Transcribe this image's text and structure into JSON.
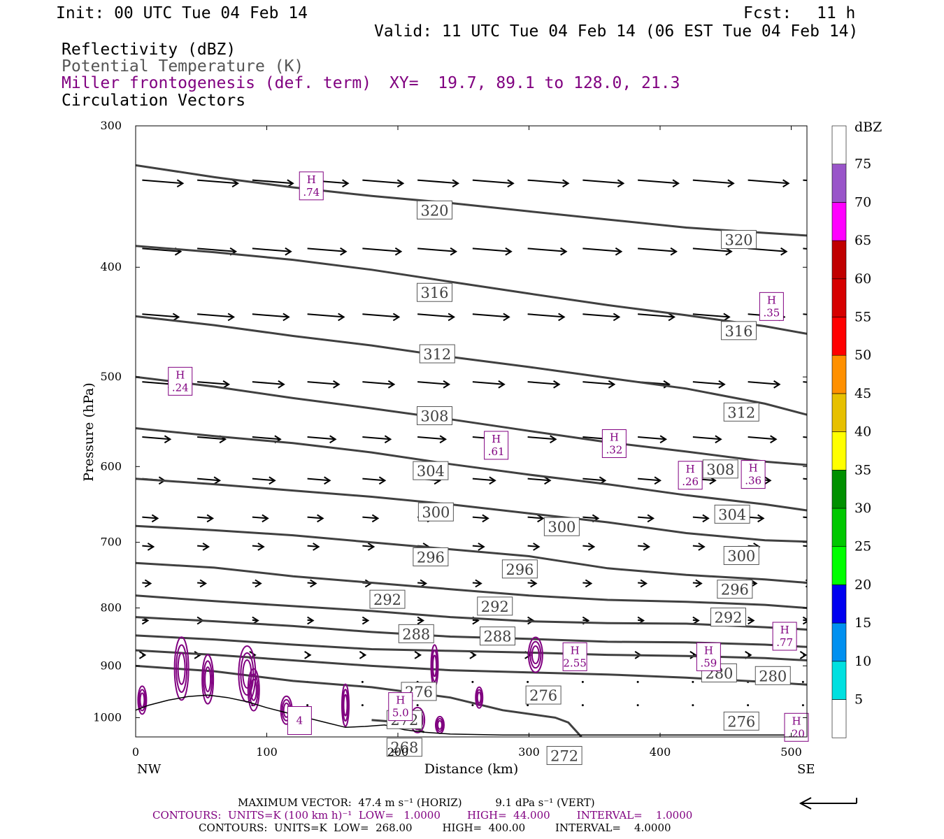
{
  "header": {
    "init": "Init: 00 UTC Tue 04 Feb 14",
    "fcst_label": "Fcst:",
    "fcst_value": "11 h",
    "valid": "Valid: 11 UTC Tue 04 Feb 14 (06 EST Tue 04 Feb 14)",
    "field1": "Reflectivity (dBZ)",
    "field2": "Potential Temperature (K)",
    "field3": "Miller frontogenesis (def. term)",
    "xy": "XY=  19.7, 89.1 to 128.0, 21.3",
    "field4": "Circulation Vectors"
  },
  "colors": {
    "theta": "#404040",
    "frontogenesis": "#800080",
    "vectors": "#000000",
    "terrain": "#000000"
  },
  "chart_data": {
    "type": "contour-cross-section",
    "xlabel": "Distance (km)",
    "ylabel": "Pressure (hPa)",
    "xlim": [
      0,
      512
    ],
    "ylim": [
      300,
      1040
    ],
    "y_scale": "log",
    "xticks": [
      0,
      100,
      200,
      300,
      400,
      500
    ],
    "yticks": [
      300,
      400,
      500,
      600,
      700,
      800,
      900,
      1000
    ],
    "x_end_left": "NW",
    "x_end_right": "SE",
    "colorbar": {
      "title": "dBZ",
      "labels": [
        "5",
        "10",
        "15",
        "20",
        "25",
        "30",
        "35",
        "40",
        "45",
        "50",
        "55",
        "60",
        "65",
        "70",
        "75"
      ],
      "colors": [
        "#ffffff",
        "#00e0e0",
        "#0090f0",
        "#0000f0",
        "#00ff00",
        "#00c800",
        "#009000",
        "#ffff00",
        "#e7c000",
        "#ff9000",
        "#ff0000",
        "#d60000",
        "#c00000",
        "#ff00ff",
        "#9955c9",
        "#ffffff"
      ]
    },
    "theta_contours": [
      {
        "level": 320,
        "points": [
          [
            0,
            325
          ],
          [
            60,
            333
          ],
          [
            120,
            340
          ],
          [
            180,
            346
          ],
          [
            240,
            351
          ],
          [
            300,
            357
          ],
          [
            360,
            363
          ],
          [
            420,
            369
          ],
          [
            480,
            373
          ],
          [
            512,
            375
          ]
        ],
        "labels": [
          [
            228,
            356
          ],
          [
            460,
            378
          ]
        ]
      },
      {
        "level": 316,
        "points": [
          [
            0,
            383
          ],
          [
            60,
            388
          ],
          [
            120,
            394
          ],
          [
            180,
            402
          ],
          [
            240,
            412
          ],
          [
            300,
            422
          ],
          [
            360,
            432
          ],
          [
            420,
            441
          ],
          [
            480,
            451
          ],
          [
            512,
            458
          ]
        ],
        "labels": [
          [
            228,
            421
          ],
          [
            460,
            455
          ]
        ]
      },
      {
        "level": 312,
        "points": [
          [
            0,
            442
          ],
          [
            60,
            450
          ],
          [
            120,
            460
          ],
          [
            180,
            469
          ],
          [
            240,
            480
          ],
          [
            300,
            490
          ],
          [
            360,
            501
          ],
          [
            420,
            512
          ],
          [
            480,
            528
          ],
          [
            512,
            540
          ]
        ],
        "labels": [
          [
            230,
            477
          ],
          [
            462,
            537
          ]
        ]
      },
      {
        "level": 308,
        "points": [
          [
            0,
            500
          ],
          [
            60,
            510
          ],
          [
            120,
            522
          ],
          [
            180,
            533
          ],
          [
            240,
            545
          ],
          [
            300,
            558
          ],
          [
            360,
            571
          ],
          [
            420,
            582
          ],
          [
            480,
            594
          ],
          [
            512,
            598
          ]
        ],
        "labels": [
          [
            228,
            541
          ],
          [
            446,
            603
          ]
        ]
      },
      {
        "level": 304,
        "points": [
          [
            0,
            555
          ],
          [
            60,
            564
          ],
          [
            120,
            572
          ],
          [
            180,
            583
          ],
          [
            240,
            597
          ],
          [
            300,
            610
          ],
          [
            360,
            622
          ],
          [
            420,
            636
          ],
          [
            480,
            648
          ],
          [
            512,
            656
          ]
        ],
        "labels": [
          [
            225,
            605
          ],
          [
            455,
            661
          ]
        ]
      },
      {
        "level": 300,
        "points": [
          [
            0,
            615
          ],
          [
            60,
            622
          ],
          [
            120,
            630
          ],
          [
            180,
            638
          ],
          [
            240,
            648
          ],
          [
            300,
            660
          ],
          [
            360,
            672
          ],
          [
            420,
            687
          ],
          [
            480,
            697
          ],
          [
            512,
            699
          ]
        ],
        "labels": [
          [
            229,
            658
          ],
          [
            325,
            678
          ],
          [
            462,
            719
          ]
        ]
      },
      {
        "level": 296,
        "points": [
          [
            0,
            677
          ],
          [
            60,
            683
          ],
          [
            120,
            690
          ],
          [
            180,
            700
          ],
          [
            240,
            710
          ],
          [
            300,
            720
          ],
          [
            360,
            738
          ],
          [
            420,
            748
          ],
          [
            480,
            755
          ],
          [
            512,
            760
          ]
        ],
        "labels": [
          [
            225,
            721
          ],
          [
            293,
            739
          ],
          [
            457,
            770
          ]
        ]
      },
      {
        "level": 292,
        "points": [
          [
            0,
            730
          ],
          [
            60,
            737
          ],
          [
            120,
            750
          ],
          [
            180,
            760
          ],
          [
            240,
            770
          ],
          [
            300,
            780
          ],
          [
            360,
            787
          ],
          [
            420,
            790
          ],
          [
            480,
            795
          ],
          [
            512,
            800
          ]
        ],
        "labels": [
          [
            192,
            786
          ],
          [
            274,
            797
          ],
          [
            452,
            815
          ]
        ]
      },
      {
        "level": 288,
        "points": [
          [
            0,
            780
          ],
          [
            60,
            789
          ],
          [
            120,
            797
          ],
          [
            180,
            805
          ],
          [
            240,
            815
          ],
          [
            300,
            822
          ],
          [
            360,
            825
          ],
          [
            420,
            826
          ],
          [
            480,
            832
          ],
          [
            512,
            836
          ]
        ],
        "labels": [
          [
            214,
            843
          ],
          [
            276,
            847
          ]
        ]
      },
      {
        "level": 284,
        "points": [
          [
            0,
            815
          ],
          [
            60,
            822
          ],
          [
            120,
            830
          ],
          [
            180,
            840
          ],
          [
            240,
            848
          ],
          [
            300,
            852
          ],
          [
            360,
            857
          ],
          [
            420,
            858
          ],
          [
            480,
            862
          ],
          [
            512,
            866
          ]
        ],
        "labels": []
      },
      {
        "level": 280,
        "points": [
          [
            0,
            846
          ],
          [
            60,
            853
          ],
          [
            120,
            862
          ],
          [
            180,
            870
          ],
          [
            240,
            873
          ],
          [
            300,
            876
          ],
          [
            360,
            880
          ],
          [
            420,
            882
          ],
          [
            480,
            886
          ],
          [
            512,
            890
          ]
        ],
        "labels": [
          [
            445,
            913
          ],
          [
            486,
            918
          ]
        ]
      },
      {
        "level": 276,
        "points": [
          [
            0,
            872
          ],
          [
            60,
            880
          ],
          [
            120,
            890
          ],
          [
            180,
            900
          ],
          [
            240,
            908
          ],
          [
            300,
            912
          ],
          [
            360,
            916
          ],
          [
            420,
            922
          ],
          [
            480,
            930
          ],
          [
            512,
            935
          ]
        ],
        "labels": [
          [
            216,
            948
          ],
          [
            311,
            955
          ],
          [
            462,
            1007
          ]
        ]
      },
      {
        "level": 272,
        "points": [
          [
            0,
            900
          ],
          [
            60,
            910
          ],
          [
            120,
            928
          ],
          [
            180,
            940
          ],
          [
            240,
            960
          ],
          [
            280,
            985
          ],
          [
            320,
            1000
          ],
          [
            330,
            1010
          ],
          [
            340,
            1040
          ]
        ],
        "labels": [
          [
            205,
            1004
          ],
          [
            327,
            1080
          ]
        ]
      },
      {
        "level": 268,
        "points": [
          [
            180,
            1005
          ],
          [
            205,
            1010
          ],
          [
            220,
            1030
          ]
        ],
        "labels": [
          [
            205,
            1062
          ]
        ]
      }
    ],
    "frontogenesis_maxima": [
      {
        "label": "H",
        "value": ".74",
        "x": 134,
        "p": 338
      },
      {
        "label": "H",
        "value": ".35",
        "x": 485,
        "p": 432
      },
      {
        "label": "H",
        "value": ".24",
        "x": 34,
        "p": 503
      },
      {
        "label": "H",
        "value": ".61",
        "x": 275,
        "p": 573
      },
      {
        "label": "H",
        "value": ".32",
        "x": 365,
        "p": 571
      },
      {
        "label": "H",
        "value": ".26",
        "x": 423,
        "p": 609
      },
      {
        "label": "H",
        "value": ".36",
        "x": 471,
        "p": 608
      },
      {
        "label": "H",
        "value": ".77",
        "x": 495,
        "p": 845
      },
      {
        "label": "H",
        "value": "2.55",
        "x": 335,
        "p": 881
      },
      {
        "label": "H",
        "value": ".59",
        "x": 437,
        "p": 881
      },
      {
        "label": "H",
        "value": "5.0",
        "x": 202,
        "p": 975
      },
      {
        "label": "H",
        "value": ".20",
        "x": 504,
        "p": 1017
      },
      {
        "label": "",
        "value": "4",
        "x": 125,
        "p": 1003
      }
    ],
    "terrain": [
      [
        0,
        985
      ],
      [
        10,
        975
      ],
      [
        25,
        965
      ],
      [
        40,
        958
      ],
      [
        55,
        955
      ],
      [
        70,
        960
      ],
      [
        85,
        968
      ],
      [
        100,
        980
      ],
      [
        115,
        990
      ],
      [
        130,
        1000
      ],
      [
        145,
        1010
      ],
      [
        160,
        1020
      ],
      [
        175,
        1018
      ],
      [
        190,
        1015
      ],
      [
        205,
        1025
      ],
      [
        220,
        1030
      ],
      [
        240,
        1034
      ],
      [
        280,
        1036
      ],
      [
        512,
        1036
      ]
    ],
    "footer": {
      "line1": "MAXIMUM VECTOR:  47.4 m s⁻¹ (HORIZ)          9.1 dPa s⁻¹ (VERT)",
      "line2": "CONTOURS:  UNITS=K (100 km h)⁻¹  LOW=   1.0000        HIGH=  44.000        INTERVAL=    1.0000",
      "line3": "CONTOURS:  UNITS=K  LOW=  268.00         HIGH=  400.00         INTERVAL=    4.0000"
    }
  }
}
